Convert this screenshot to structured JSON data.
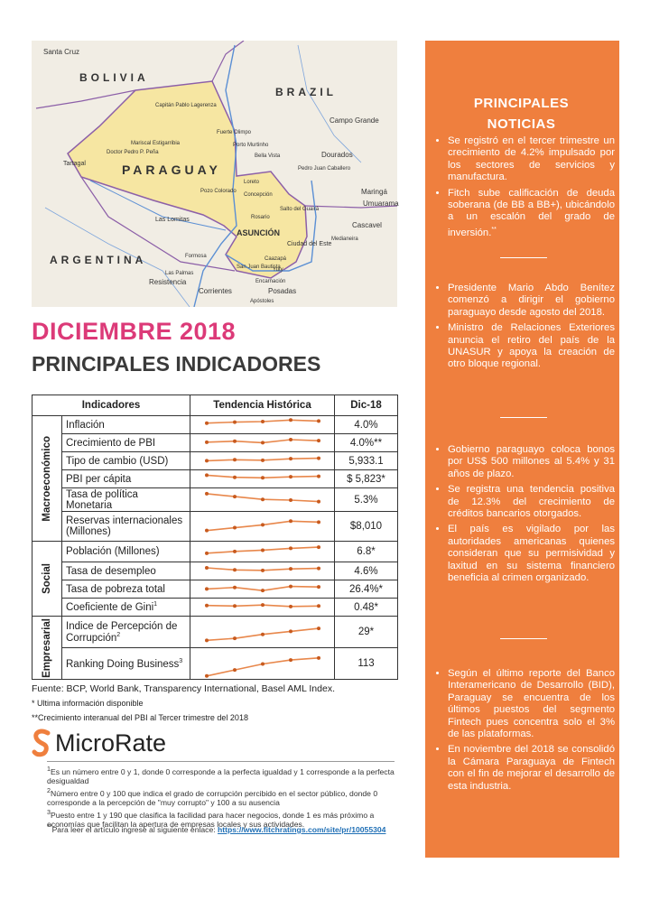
{
  "map": {
    "labels": [
      "Santa Cruz",
      "BOLIVIA",
      "BRAZIL",
      "Capitán Pablo Lagerenza",
      "Fuerte Olimpo",
      "Mariscal Estigarribia",
      "Doctor Pedro P. Peña",
      "Tartagal",
      "Porto Murtinho",
      "Bella Vista",
      "Dourados",
      "Pedro Juan Caballero",
      "Campo Grande",
      "PARAGUAY",
      "Loreto",
      "Concepción",
      "Pozo Colorado",
      "Salto del Guairá",
      "Maringá",
      "Umuarama",
      "Las Lomitas",
      "Rosario",
      "ASUNCIÓN",
      "Cascavel",
      "Medianeira",
      "Ciudad del Este",
      "Formosa",
      "Caazapá",
      "San Juan Bautista",
      "Yuty",
      "ARGENTINA",
      "Las Palmas",
      "Resistencia",
      "Encarnación",
      "Corrientes",
      "Posadas",
      "Apóstoles"
    ]
  },
  "header": {
    "month_title": "DICIEMBRE 2018",
    "subtitle": "PRINCIPALES INDICADORES"
  },
  "table": {
    "columns": [
      "Indicadores",
      "Tendencia Histórica",
      "Dic-18"
    ],
    "groups": [
      {
        "name": "Macroeconómico",
        "rows": [
          {
            "indicator": "Inflación",
            "value": "4.0%"
          },
          {
            "indicator": "Crecimiento de PBI",
            "value": "4.0%**"
          },
          {
            "indicator": "Tipo de cambio (USD)",
            "value": "5,933.1"
          },
          {
            "indicator": "PBI per cápita",
            "value": "$ 5,823*"
          },
          {
            "indicator": "Tasa de política Monetaria",
            "value": "5.3%"
          },
          {
            "indicator": "Reservas internacionales (Millones)",
            "value": "$8,010"
          }
        ]
      },
      {
        "name": "Social",
        "rows": [
          {
            "indicator": "Población (Millones)",
            "value": "6.8*"
          },
          {
            "indicator": "Tasa de desempleo",
            "value": "4.6%"
          },
          {
            "indicator": "Tasa de pobreza total",
            "value": "26.4%*"
          },
          {
            "indicator": "Coeficiente de Gini",
            "sup": "1",
            "value": "0.48*"
          }
        ]
      },
      {
        "name": "Empresarial",
        "rows": [
          {
            "indicator": "Indice de Percepción de Corrupción",
            "sup": "2",
            "value": "29*"
          },
          {
            "indicator": "Ranking Doing Business",
            "sup": "3",
            "value": "113"
          }
        ]
      }
    ]
  },
  "notes": [
    "Fuente: BCP, World Bank, Transparency International, Basel AML Index.",
    "* Ultima información disponible",
    "**Crecimiento interanual  del PBI al Tercer trimestre del 2018"
  ],
  "logo": "MicroRate",
  "footnotes": [
    {
      "mark": "1",
      "text": "Es un número entre 0 y 1, donde 0 corresponde a la perfecta igualdad y 1 corresponde a la perfecta desigualdad"
    },
    {
      "mark": "2",
      "text": "Número entre 0 y 100 que indica el grado de corrupción percibido en el sector público, donde 0 corresponde a la percepción de \"muy corrupto\" y 100 a su ausencia"
    },
    {
      "mark": "3",
      "text": "Puesto entre 1 y 190 que clasifica la facilidad para hacer negocios, donde 1 es más próximo a economías que facilitan la apertura de empresas locales y sus actividades."
    }
  ],
  "link_note": {
    "mark": "**",
    "text": "Para leer el artículo ingrese al siguiente enlace: ",
    "url": "https://www.fitchratings.com/site/pr/10055304"
  },
  "news": {
    "title": "PRINCIPALES NOTICIAS",
    "sections": [
      [
        {
          "text": "Se registró en el tercer trimestre un crecimiento de 4.2% impulsado por los sectores de servicios y manufactura."
        },
        {
          "text": "Fitch sube calificación de deuda soberana (de BB a BB+), ubicándolo a un escalón del grado de inversión.",
          "sup": "**"
        }
      ],
      [
        {
          "text": "Presidente Mario Abdo Benítez comenzó a dirigir el gobierno paraguayo desde agosto del 2018."
        },
        {
          "text": "Ministro de Relaciones Exteriores anuncia el retiro del país de la UNASUR y apoya la creación de otro bloque regional."
        }
      ],
      [
        {
          "text": "Gobierno paraguayo coloca bonos por US$ 500 millones al 5.4% y 31 años de plazo."
        },
        {
          "text": "Se registra una tendencia positiva de 12.3% del crecimiento de créditos bancarios otorgados."
        },
        {
          "text": "El país es vigilado por las autoridades americanas quienes consideran que su permisividad y laxitud en su sistema financiero beneficia al crimen organizado."
        }
      ],
      [
        {
          "text": "Según el último reporte del Banco Interamericano de Desarrollo (BID), Paraguay se encuentra de los últimos puestos del segmento Fintech pues concentra solo el 3% de las plataformas."
        },
        {
          "text": "En noviembre del 2018 se consolidó la Cámara Paraguaya de Fintech con el fin de mejorar el desarrollo de esta industria."
        }
      ]
    ]
  }
}
